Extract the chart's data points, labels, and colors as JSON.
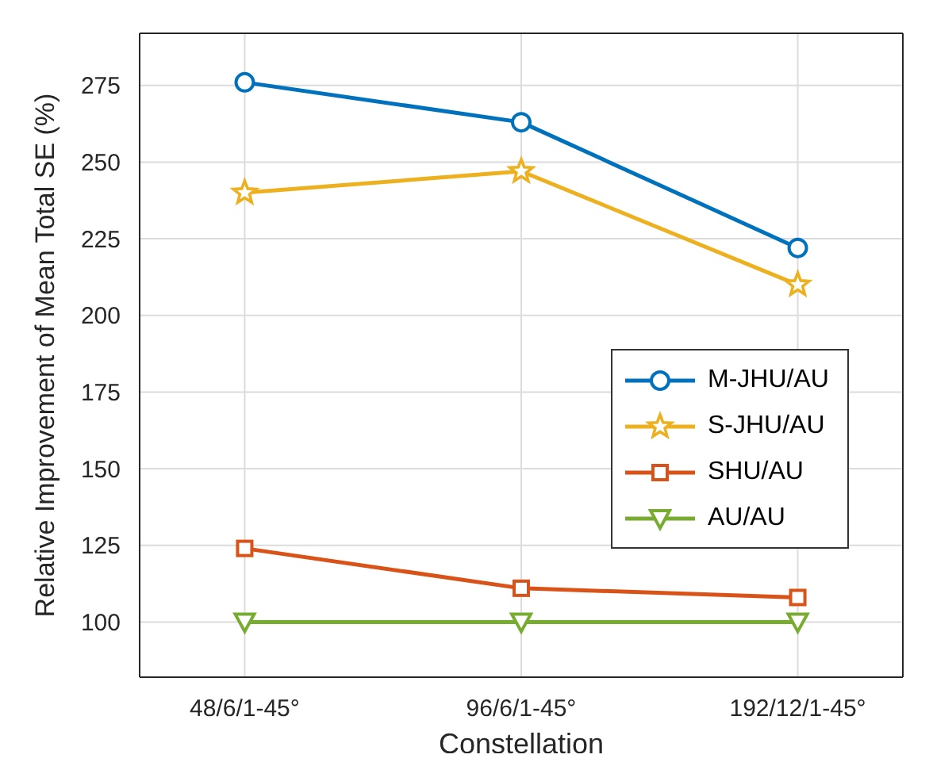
{
  "chart_data": {
    "type": "line",
    "xlabel": "Constellation",
    "ylabel": "Relative Improvement of Mean Total SE (%)",
    "categories": [
      "48/6/1-45°",
      "96/6/1-45°",
      "192/12/1-45°"
    ],
    "series": [
      {
        "name": "M-JHU/AU",
        "color": "#0072bd",
        "marker": "circle",
        "values": [
          276,
          263,
          222
        ]
      },
      {
        "name": "S-JHU/AU",
        "color": "#edb120",
        "marker": "star",
        "values": [
          240,
          247,
          210
        ]
      },
      {
        "name": "SHU/AU",
        "color": "#d95319",
        "marker": "square",
        "values": [
          124,
          111,
          108
        ]
      },
      {
        "name": "AU/AU",
        "color": "#77ac30",
        "marker": "triangle",
        "values": [
          100,
          100,
          100
        ]
      }
    ],
    "ylim": [
      82,
      292
    ],
    "yticks": [
      100,
      125,
      150,
      175,
      200,
      225,
      250,
      275
    ],
    "grid": true,
    "legend": "right",
    "line_style": "solid"
  }
}
